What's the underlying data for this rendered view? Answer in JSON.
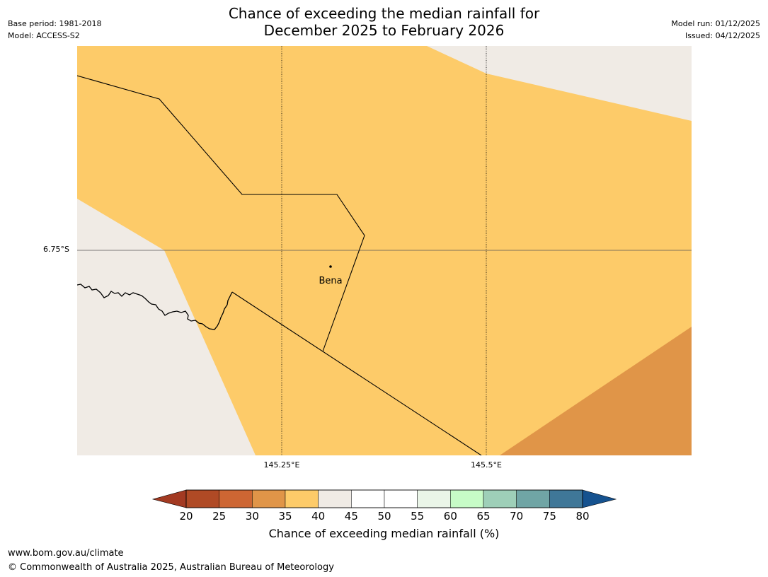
{
  "header": {
    "title_line1": "Chance of exceeding the median rainfall for",
    "title_line2": "December 2025 to February 2026",
    "base_period": "Base period: 1981-2018",
    "model": "Model: ACCESS-S2",
    "model_run": "Model run: 01/12/2025",
    "issued": "Issued: 04/12/2025"
  },
  "map": {
    "place_name": "Bena",
    "lat_labels": [
      "6.75°S"
    ],
    "lon_labels": [
      "145.25°E",
      "145.5°E"
    ],
    "fill_colors": {
      "background": "#f0ebe5",
      "band_35_40": "#fdcb69",
      "band_30_35": "#e09548"
    }
  },
  "colorbar": {
    "title": "Chance of exceeding median rainfall (%)",
    "ticks": [
      "20",
      "25",
      "30",
      "35",
      "40",
      "45",
      "50",
      "55",
      "60",
      "65",
      "70",
      "75",
      "80"
    ],
    "low_extend_color": "#a33a22",
    "high_extend_color": "#15528f",
    "colors": [
      "#b04a25",
      "#cd6633",
      "#e09548",
      "#fdcb69",
      "#f0ebe5",
      "#ffffff",
      "#ffffff",
      "#eaf5e8",
      "#c7fcc7",
      "#9ecfb8",
      "#70a5a5",
      "#3f7798"
    ]
  },
  "footer": {
    "url": "www.bom.gov.au/climate",
    "copyright": "© Commonwealth of Australia 2025, Australian Bureau of Meteorology"
  }
}
